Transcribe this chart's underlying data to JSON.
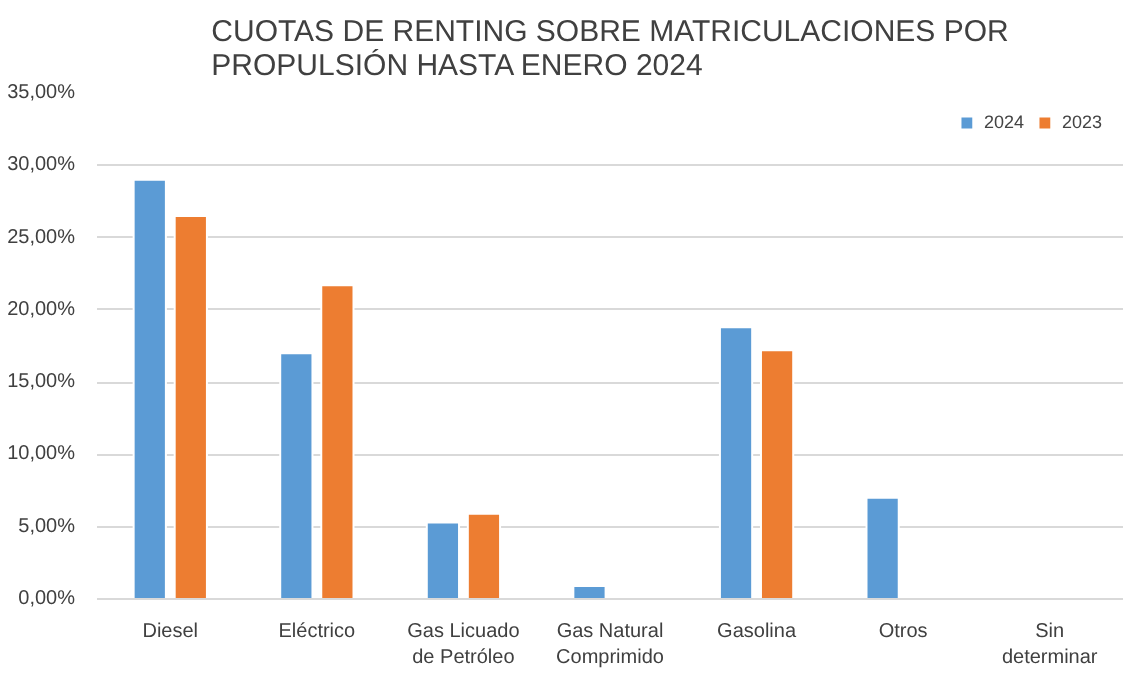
{
  "chart_data": {
    "type": "bar",
    "title": "CUOTAS DE RENTING SOBRE MATRICULACIONES POR PROPULSIÓN HASTA ENERO 2024",
    "categories": [
      "Diesel",
      "Eléctrico",
      "Gas Licuado de Petróleo",
      "Gas Natural Comprimido",
      "Gasolina",
      "Otros",
      "Sin determinar"
    ],
    "series": [
      {
        "name": "2024",
        "color": "#5b9bd5",
        "values": [
          29.0,
          17.0,
          5.3,
          0.9,
          18.8,
          7.0,
          null
        ]
      },
      {
        "name": "2023",
        "color": "#ed7d31",
        "values": [
          26.5,
          21.7,
          5.9,
          null,
          17.2,
          null,
          null
        ]
      }
    ],
    "ylim": [
      0,
      35
    ],
    "yticks": [
      {
        "value": 0,
        "label": "0,00%"
      },
      {
        "value": 5,
        "label": "5,00%"
      },
      {
        "value": 10,
        "label": "10,00%"
      },
      {
        "value": 15,
        "label": "15,00%"
      },
      {
        "value": 20,
        "label": "20,00%"
      },
      {
        "value": 25,
        "label": "25,00%"
      },
      {
        "value": 30,
        "label": "30,00%"
      },
      {
        "value": 35,
        "label": "35,00%"
      }
    ],
    "grid": "y",
    "legend": "top right"
  }
}
